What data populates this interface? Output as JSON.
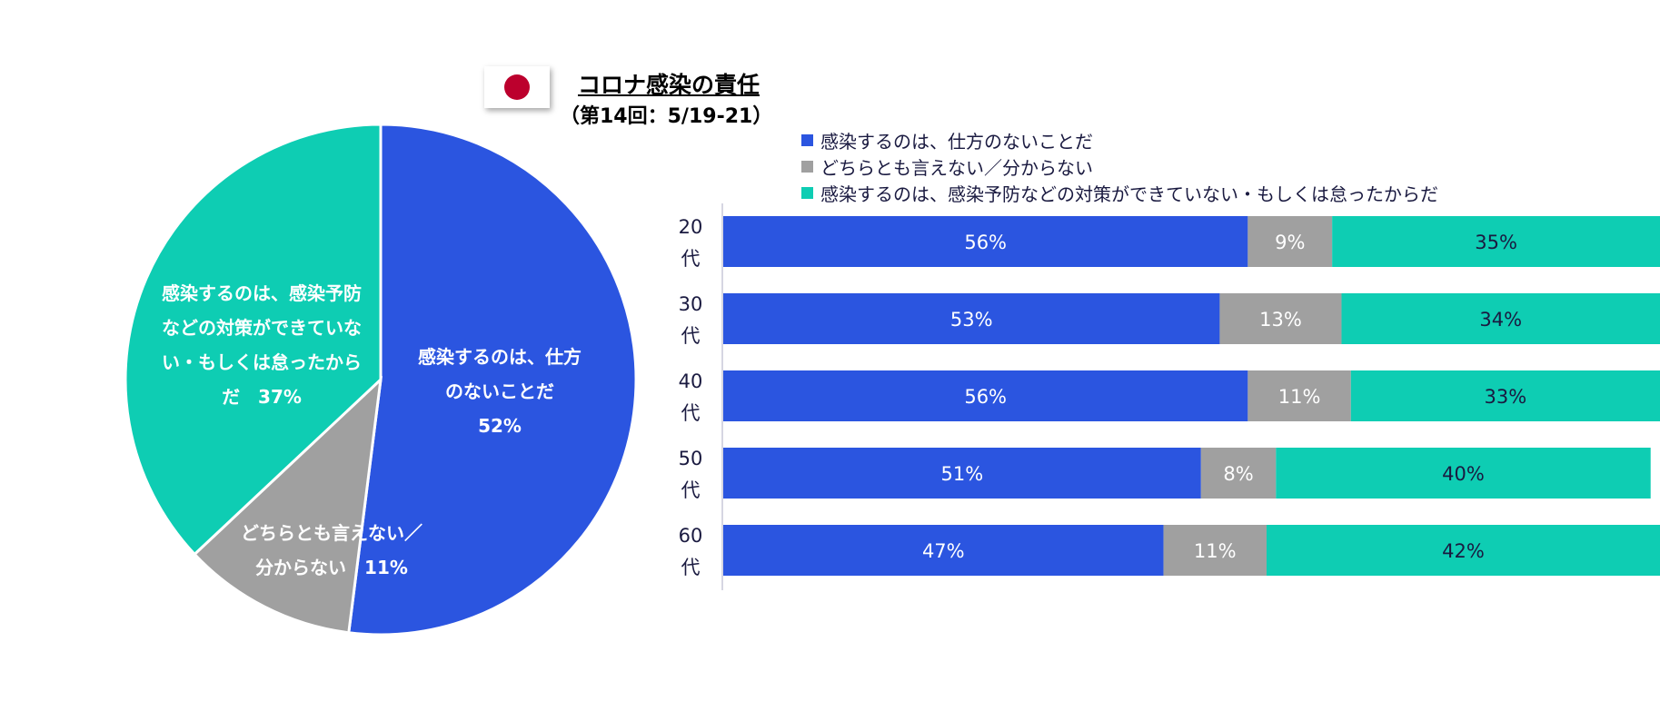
{
  "title": "コロナ感染の責任",
  "subtitle": "（第14回：5/19-21）",
  "colors": {
    "blue": "#2B55E0",
    "gray": "#A0A0A0",
    "teal": "#0ECDB3"
  },
  "chart_data": [
    {
      "type": "pie",
      "slices": [
        {
          "label": "感染するのは、仕方のないことだ",
          "display_label": [
            "感染するのは、仕方",
            "のないことだ",
            "52%"
          ],
          "value": 52,
          "color": "#2B55E0"
        },
        {
          "label": "どちらとも言えない／分からない",
          "display_label": [
            "どちらとも言えない／",
            "分からない　11%"
          ],
          "value": 11,
          "color": "#A0A0A0"
        },
        {
          "label": "感染するのは、感染予防などの対策ができていない・もしくは怠ったからだ",
          "display_label": [
            "感染するのは、感染予防",
            "などの対策ができていな",
            "い・もしくは怠ったから",
            "だ　37%"
          ],
          "value": 37,
          "color": "#0ECDB3"
        }
      ]
    },
    {
      "type": "bar",
      "orientation": "horizontal",
      "stacked": true,
      "categories": [
        [
          "20",
          "代"
        ],
        [
          "30",
          "代"
        ],
        [
          "40",
          "代"
        ],
        [
          "50",
          "代"
        ],
        [
          "60",
          "代"
        ]
      ],
      "series": [
        {
          "name": "感染するのは、仕方のないことだ",
          "color": "#2B55E0",
          "label_color": "#ffffff",
          "values": [
            56,
            53,
            56,
            51,
            47
          ]
        },
        {
          "name": "どちらとも言えない／分からない",
          "color": "#A0A0A0",
          "label_color": "#ffffff",
          "values": [
            9,
            13,
            11,
            8,
            11
          ]
        },
        {
          "name": "感染するのは、感染予防などの対策ができていない・もしくは怠ったからだ",
          "color": "#0ECDB3",
          "label_color": "#1a1a40",
          "values": [
            35,
            34,
            33,
            40,
            42
          ]
        }
      ],
      "value_suffix": "%",
      "xlim": [
        0,
        100
      ],
      "legend_position": "top"
    }
  ]
}
